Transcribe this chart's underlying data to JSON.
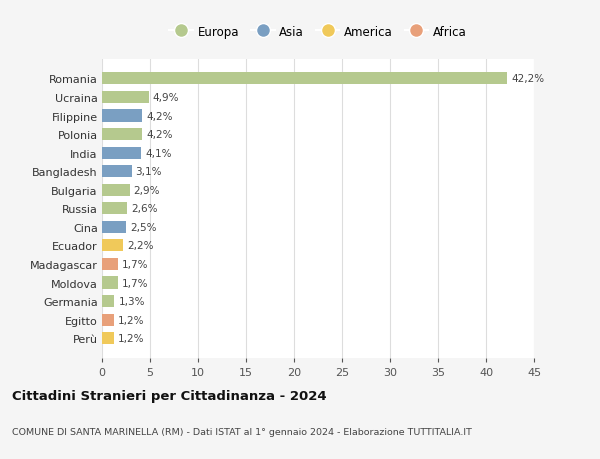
{
  "countries": [
    "Romania",
    "Ucraina",
    "Filippine",
    "Polonia",
    "India",
    "Bangladesh",
    "Bulgaria",
    "Russia",
    "Cina",
    "Ecuador",
    "Madagascar",
    "Moldova",
    "Germania",
    "Egitto",
    "Perù"
  ],
  "values": [
    42.2,
    4.9,
    4.2,
    4.2,
    4.1,
    3.1,
    2.9,
    2.6,
    2.5,
    2.2,
    1.7,
    1.7,
    1.3,
    1.2,
    1.2
  ],
  "labels": [
    "42,2%",
    "4,9%",
    "4,2%",
    "4,2%",
    "4,1%",
    "3,1%",
    "2,9%",
    "2,6%",
    "2,5%",
    "2,2%",
    "1,7%",
    "1,7%",
    "1,3%",
    "1,2%",
    "1,2%"
  ],
  "continents": [
    "Europa",
    "Europa",
    "Asia",
    "Europa",
    "Asia",
    "Asia",
    "Europa",
    "Europa",
    "Asia",
    "America",
    "Africa",
    "Europa",
    "Europa",
    "Africa",
    "America"
  ],
  "colors": {
    "Europa": "#b5c98e",
    "Asia": "#7a9fc2",
    "America": "#f0c95a",
    "Africa": "#e8a07a"
  },
  "title": "Cittadini Stranieri per Cittadinanza - 2024",
  "subtitle": "COMUNE DI SANTA MARINELLA (RM) - Dati ISTAT al 1° gennaio 2024 - Elaborazione TUTTITALIA.IT",
  "xlim": [
    0,
    45
  ],
  "xticks": [
    0,
    5,
    10,
    15,
    20,
    25,
    30,
    35,
    40,
    45
  ],
  "bg_color": "#f5f5f5",
  "plot_bg_color": "#ffffff",
  "grid_color": "#dddddd",
  "legend_order": [
    "Europa",
    "Asia",
    "America",
    "Africa"
  ]
}
